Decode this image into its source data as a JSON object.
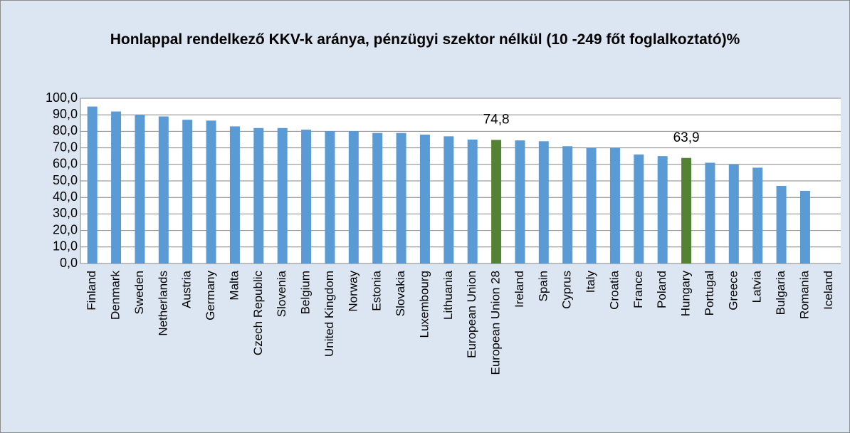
{
  "chart_data": {
    "type": "bar",
    "title": "Honlappal rendelkező KKV-k aránya, pénzügyi szektor nélkül (10 -249 főt foglalkoztató)%",
    "categories": [
      "Finland",
      "Denmark",
      "Sweden",
      "Netherlands",
      "Austria",
      "Germany",
      "Malta",
      "Czech Republic",
      "Slovenia",
      "Belgium",
      "United Kingdom",
      "Norway",
      "Estonia",
      "Slovakia",
      "Luxembourg",
      "Lithuania",
      "European Union",
      "European Union 28",
      "Ireland",
      "Spain",
      "Cyprus",
      "Italy",
      "Croatia",
      "France",
      "Poland",
      "Hungary",
      "Portugal",
      "Greece",
      "Latvia",
      "Bulgaria",
      "Romania",
      "Iceland"
    ],
    "values": [
      95,
      92,
      90,
      89,
      87,
      86.5,
      83,
      82,
      82,
      81,
      80,
      80,
      79,
      79,
      78,
      77,
      75,
      74.8,
      74.5,
      74,
      71,
      70,
      70,
      66,
      65,
      63.9,
      61,
      60,
      58,
      47,
      44,
      null
    ],
    "value_labels": [
      null,
      null,
      null,
      null,
      null,
      null,
      null,
      null,
      null,
      null,
      null,
      null,
      null,
      null,
      null,
      null,
      null,
      "74,8",
      null,
      null,
      null,
      null,
      null,
      null,
      null,
      "63,9",
      null,
      null,
      null,
      null,
      null,
      null
    ],
    "colors": [
      "#5b9bd5",
      "#5b9bd5",
      "#5b9bd5",
      "#5b9bd5",
      "#5b9bd5",
      "#5b9bd5",
      "#5b9bd5",
      "#5b9bd5",
      "#5b9bd5",
      "#5b9bd5",
      "#5b9bd5",
      "#5b9bd5",
      "#5b9bd5",
      "#5b9bd5",
      "#5b9bd5",
      "#5b9bd5",
      "#5b9bd5",
      "#548235",
      "#5b9bd5",
      "#5b9bd5",
      "#5b9bd5",
      "#5b9bd5",
      "#5b9bd5",
      "#5b9bd5",
      "#5b9bd5",
      "#548235",
      "#5b9bd5",
      "#5b9bd5",
      "#5b9bd5",
      "#5b9bd5",
      "#5b9bd5",
      "#5b9bd5"
    ],
    "ylim": [
      0,
      100
    ],
    "yticks": [
      {
        "value": 0,
        "label": "0,0"
      },
      {
        "value": 10,
        "label": "10,0"
      },
      {
        "value": 20,
        "label": "20,0"
      },
      {
        "value": 30,
        "label": "30,0"
      },
      {
        "value": 40,
        "label": "40,0"
      },
      {
        "value": 50,
        "label": "50,0"
      },
      {
        "value": 60,
        "label": "60,0"
      },
      {
        "value": 70,
        "label": "70,0"
      },
      {
        "value": 80,
        "label": "80,0"
      },
      {
        "value": 90,
        "label": "90,0"
      },
      {
        "value": 100,
        "label": "100,0"
      }
    ],
    "grid": true
  }
}
